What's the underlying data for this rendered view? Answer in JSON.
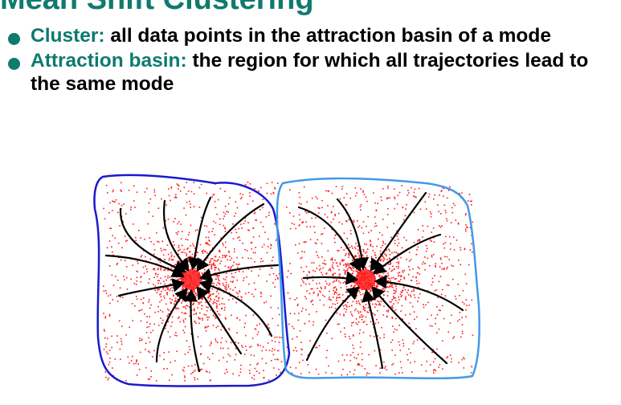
{
  "slide": {
    "title": "Mean Shift Clustering",
    "bullets": [
      {
        "term": "Cluster:",
        "text": "all data points in the attraction basin of a mode"
      },
      {
        "term": "Attraction basin:",
        "text": "the region for which all trajectories lead to the same mode"
      }
    ]
  },
  "figure": {
    "colors": {
      "points": "#ff1a1a",
      "trajectories": "#000000",
      "basin_left": "#1a1acc",
      "basin_right": "#4499e8"
    },
    "basins": [
      {
        "name": "left-basin",
        "points": 1400
      },
      {
        "name": "right-basin",
        "points": 1400
      }
    ]
  }
}
